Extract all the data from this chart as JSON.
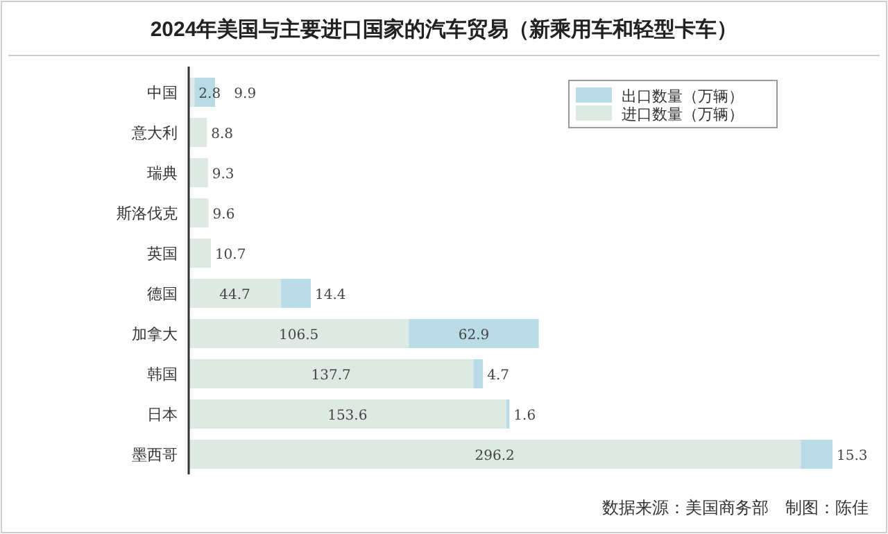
{
  "chart_data": {
    "type": "bar",
    "orientation": "horizontal",
    "stacked": true,
    "data_labels": true,
    "legend": "top right",
    "title": "2024年美国与主要进口国家的汽车贸易（新乘用车和轻型卡车）",
    "categories": [
      "中国",
      "意大利",
      "瑞典",
      "斯洛伐克",
      "英国",
      "德国",
      "加拿大",
      "韩国",
      "日本",
      "墨西哥"
    ],
    "series": [
      {
        "name": "进口数量（万辆）",
        "color": "#dfe9e3",
        "values": [
          2.8,
          8.8,
          9.3,
          9.6,
          10.7,
          44.7,
          106.5,
          137.7,
          153.6,
          296.2
        ]
      },
      {
        "name": "出口数量（万辆）",
        "color": "#b9dbe6",
        "values": [
          9.9,
          null,
          null,
          null,
          null,
          14.4,
          62.9,
          4.7,
          1.6,
          15.3
        ]
      }
    ],
    "annotations": [
      "数据来源：美国商务部　制图：陈佳"
    ]
  }
}
